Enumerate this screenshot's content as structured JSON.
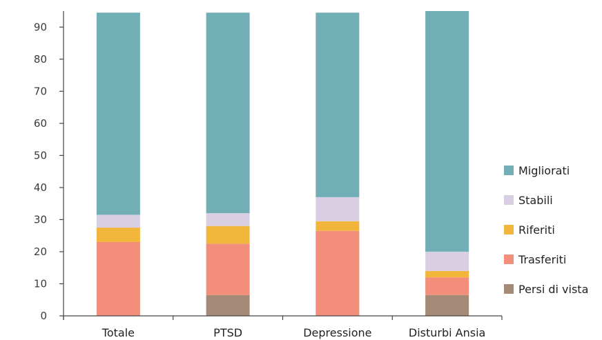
{
  "chart_data": {
    "type": "bar",
    "stacked": true,
    "categories": [
      "Totale",
      "PTSD",
      "Depressione",
      "Disturbi Ansia"
    ],
    "series": [
      {
        "name": "Persi di vista",
        "color": "#a68a78",
        "values": [
          0,
          6.5,
          0,
          6.5
        ]
      },
      {
        "name": "Trasferiti",
        "color": "#f28e7a",
        "values": [
          23,
          16,
          26.5,
          5.5
        ]
      },
      {
        "name": "Riferiti",
        "color": "#f3b63d",
        "values": [
          4.5,
          5.5,
          3,
          2
        ]
      },
      {
        "name": "Stabili",
        "color": "#d9cfe3",
        "values": [
          4,
          4,
          7.5,
          6
        ]
      },
      {
        "name": "Migliorati",
        "color": "#72aeb5",
        "values": [
          63,
          62.5,
          57.5,
          75
        ]
      }
    ],
    "ylim": [
      0,
      95
    ],
    "yticks": [
      0,
      10,
      20,
      30,
      40,
      50,
      60,
      70,
      80,
      90
    ],
    "legend_position": "right",
    "grid": false
  }
}
